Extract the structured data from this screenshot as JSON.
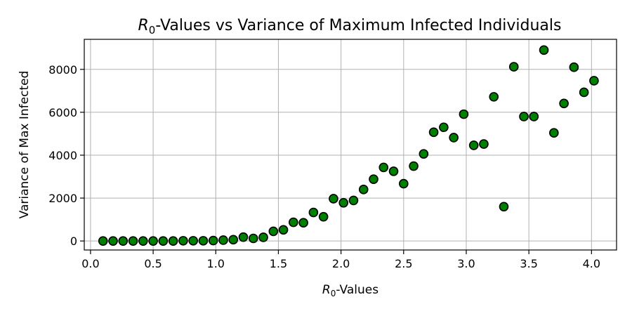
{
  "chart_data": {
    "type": "scatter",
    "title": "R0-Values vs Variance of Maximum Infected Individuals",
    "title_parts": {
      "italic": "R",
      "sub": "0",
      "rest": "-Values vs Variance of Maximum Infected Individuals"
    },
    "xlabel": "R0-Values",
    "xlabel_parts": {
      "italic": "R",
      "sub": "0",
      "rest": "-Values"
    },
    "ylabel": "Variance of Max Infected",
    "xlim": [
      -0.05,
      4.2
    ],
    "ylim": [
      -420,
      9400
    ],
    "xticks": [
      0.0,
      0.5,
      1.0,
      1.5,
      2.0,
      2.5,
      3.0,
      3.5,
      4.0
    ],
    "xtick_labels": [
      "0.0",
      "0.5",
      "1.0",
      "1.5",
      "2.0",
      "2.5",
      "3.0",
      "3.5",
      "4.0"
    ],
    "yticks": [
      0,
      2000,
      4000,
      6000,
      8000
    ],
    "ytick_labels": [
      "0",
      "2000",
      "4000",
      "6000",
      "8000"
    ],
    "grid": true,
    "marker_color": "#008000",
    "marker_edge_color": "#000000",
    "points": [
      {
        "x": 0.1,
        "y": 0
      },
      {
        "x": 0.18,
        "y": 0
      },
      {
        "x": 0.26,
        "y": 0
      },
      {
        "x": 0.34,
        "y": 0
      },
      {
        "x": 0.42,
        "y": 0
      },
      {
        "x": 0.5,
        "y": 0
      },
      {
        "x": 0.58,
        "y": 0
      },
      {
        "x": 0.66,
        "y": 0
      },
      {
        "x": 0.74,
        "y": 10
      },
      {
        "x": 0.82,
        "y": 10
      },
      {
        "x": 0.9,
        "y": 10
      },
      {
        "x": 0.98,
        "y": 20
      },
      {
        "x": 1.06,
        "y": 40
      },
      {
        "x": 1.14,
        "y": 60
      },
      {
        "x": 1.22,
        "y": 180
      },
      {
        "x": 1.3,
        "y": 120
      },
      {
        "x": 1.38,
        "y": 170
      },
      {
        "x": 1.46,
        "y": 450
      },
      {
        "x": 1.54,
        "y": 520
      },
      {
        "x": 1.62,
        "y": 870
      },
      {
        "x": 1.7,
        "y": 850
      },
      {
        "x": 1.78,
        "y": 1330
      },
      {
        "x": 1.86,
        "y": 1130
      },
      {
        "x": 1.94,
        "y": 1970
      },
      {
        "x": 2.02,
        "y": 1780
      },
      {
        "x": 2.1,
        "y": 1890
      },
      {
        "x": 2.18,
        "y": 2400
      },
      {
        "x": 2.26,
        "y": 2880
      },
      {
        "x": 2.34,
        "y": 3430
      },
      {
        "x": 2.42,
        "y": 3250
      },
      {
        "x": 2.5,
        "y": 2670
      },
      {
        "x": 2.58,
        "y": 3490
      },
      {
        "x": 2.66,
        "y": 4060
      },
      {
        "x": 2.74,
        "y": 5070
      },
      {
        "x": 2.82,
        "y": 5300
      },
      {
        "x": 2.9,
        "y": 4820
      },
      {
        "x": 2.98,
        "y": 5910
      },
      {
        "x": 3.06,
        "y": 4460
      },
      {
        "x": 3.14,
        "y": 4520
      },
      {
        "x": 3.22,
        "y": 6720
      },
      {
        "x": 3.3,
        "y": 1600
      },
      {
        "x": 3.38,
        "y": 8120
      },
      {
        "x": 3.46,
        "y": 5800
      },
      {
        "x": 3.54,
        "y": 5800
      },
      {
        "x": 3.62,
        "y": 8900
      },
      {
        "x": 3.7,
        "y": 5040
      },
      {
        "x": 3.78,
        "y": 6410
      },
      {
        "x": 3.86,
        "y": 8100
      },
      {
        "x": 3.94,
        "y": 6930
      },
      {
        "x": 4.02,
        "y": 7470
      }
    ]
  }
}
